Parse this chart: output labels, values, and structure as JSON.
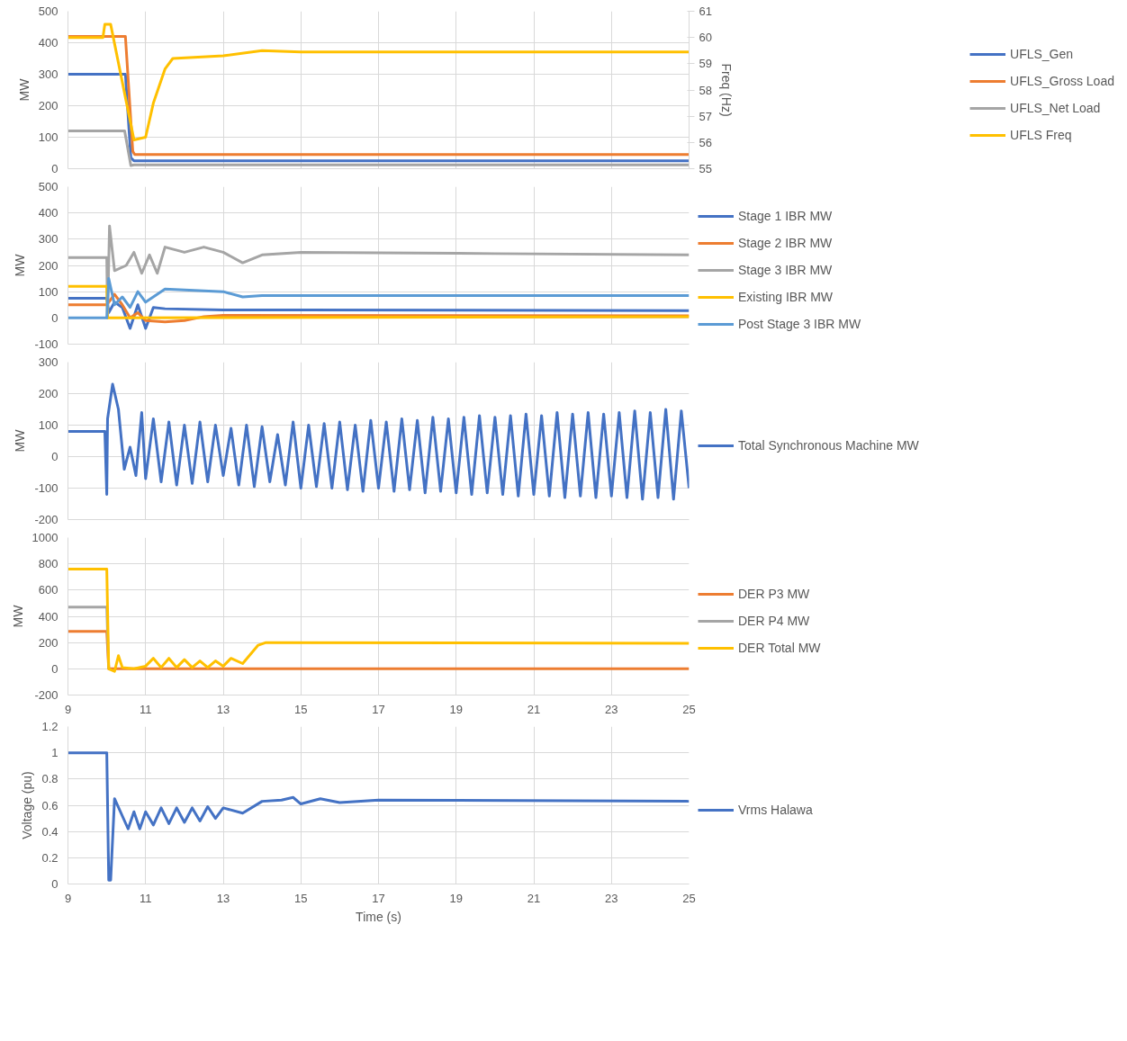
{
  "chart_data": [
    {
      "type": "line",
      "ylabel": "MW",
      "y2label": "Freq (Hz)",
      "xlim": [
        9,
        25
      ],
      "xticks": [
        9,
        11,
        13,
        15,
        17,
        19,
        21,
        23,
        25
      ],
      "ylim": [
        0,
        500
      ],
      "yticks": [
        0,
        100,
        200,
        300,
        400,
        500
      ],
      "y2lim": [
        55,
        61
      ],
      "y2ticks": [
        55,
        56,
        57,
        58,
        59,
        60,
        61
      ],
      "tick_labels": "y",
      "grid": true,
      "legend": "right",
      "series": [
        {
          "name": "UFLS_Gen",
          "color": "#4472c4",
          "x": [
            9,
            10.48,
            10.62,
            10.7,
            25
          ],
          "values": [
            300,
            300,
            35,
            25,
            25
          ]
        },
        {
          "name": "UFLS_Gross Load",
          "color": "#ed7d31",
          "x": [
            9,
            10.48,
            10.67,
            10.72,
            25
          ],
          "values": [
            420,
            420,
            55,
            45,
            45
          ]
        },
        {
          "name": "UFLS_Net Load",
          "color": "#a5a5a5",
          "x": [
            9,
            10.46,
            10.62,
            10.7,
            25
          ],
          "values": [
            120,
            120,
            10,
            12,
            12
          ]
        },
        {
          "name": "UFLS Freq",
          "color": "#ffc000",
          "axis": "y2",
          "x": [
            9,
            9.9,
            9.95,
            10.1,
            10.7,
            11.0,
            11.2,
            11.5,
            11.7,
            13,
            14,
            15,
            25
          ],
          "values": [
            60.0,
            60.0,
            60.5,
            60.5,
            56.1,
            56.2,
            57.5,
            58.8,
            59.2,
            59.3,
            59.5,
            59.45,
            59.45
          ]
        }
      ]
    },
    {
      "type": "line",
      "ylabel": "MW",
      "xlim": [
        9,
        25
      ],
      "xticks": [
        9,
        11,
        13,
        15,
        17,
        19,
        21,
        23,
        25
      ],
      "ylim": [
        -100,
        500
      ],
      "yticks": [
        -100,
        0,
        100,
        200,
        300,
        400,
        500
      ],
      "tick_labels": "y",
      "grid": true,
      "legend": "right",
      "series": [
        {
          "name": "Stage 1 IBR MW",
          "color": "#4472c4",
          "x": [
            9,
            10.0,
            10.05,
            10.2,
            10.4,
            10.6,
            10.8,
            11.0,
            11.2,
            11.5,
            13,
            15,
            25
          ],
          "values": [
            75,
            75,
            20,
            60,
            40,
            -40,
            50,
            -40,
            40,
            35,
            30,
            30,
            28
          ]
        },
        {
          "name": "Stage 2 IBR MW",
          "color": "#ed7d31",
          "x": [
            9,
            10.0,
            10.2,
            10.4,
            10.6,
            10.8,
            11.0,
            11.5,
            12,
            12.5,
            13,
            25
          ],
          "values": [
            50,
            50,
            90,
            50,
            0,
            20,
            -10,
            -15,
            -10,
            5,
            10,
            8
          ]
        },
        {
          "name": "Stage 3 IBR MW",
          "color": "#a5a5a5",
          "x": [
            9,
            10.0,
            10.02,
            10.07,
            10.2,
            10.5,
            10.7,
            10.9,
            11.1,
            11.3,
            11.5,
            12,
            12.5,
            13,
            13.5,
            14,
            15,
            20,
            25
          ],
          "values": [
            230,
            230,
            0,
            350,
            180,
            200,
            250,
            170,
            240,
            170,
            270,
            250,
            270,
            250,
            210,
            240,
            250,
            245,
            240
          ]
        },
        {
          "name": "Existing IBR MW",
          "color": "#ffc000",
          "x": [
            9,
            10.0,
            10.02,
            25
          ],
          "values": [
            120,
            120,
            0,
            5
          ]
        },
        {
          "name": "Post Stage 3 IBR MW",
          "color": "#5b9bd5",
          "x": [
            9,
            10.0,
            10.05,
            10.2,
            10.4,
            10.6,
            10.8,
            11.0,
            11.5,
            13,
            13.5,
            14,
            15,
            25
          ],
          "values": [
            0,
            0,
            150,
            50,
            80,
            40,
            100,
            60,
            110,
            100,
            80,
            85,
            85,
            85
          ]
        }
      ]
    },
    {
      "type": "line",
      "ylabel": "MW",
      "xlim": [
        9,
        25
      ],
      "xticks": [
        9,
        11,
        13,
        15,
        17,
        19,
        21,
        23,
        25
      ],
      "ylim": [
        -200,
        300
      ],
      "yticks": [
        -200,
        -100,
        0,
        100,
        200,
        300
      ],
      "tick_labels": "y",
      "grid": true,
      "legend": "right",
      "series": [
        {
          "name": "Total Synchronous Machine MW",
          "color": "#4472c4",
          "x": [
            9,
            9.95,
            10.0,
            10.02,
            10.15,
            10.3,
            10.45,
            10.6,
            10.75,
            10.9,
            11.0,
            11.2,
            11.4,
            11.6,
            11.8,
            12.0,
            12.2,
            12.4,
            12.6,
            12.8,
            13.0,
            13.2,
            13.4,
            13.6,
            13.8,
            14.0,
            14.2,
            14.4,
            14.6,
            14.8,
            15.0,
            15.2,
            15.4,
            15.6,
            15.8,
            16.0,
            16.2,
            16.4,
            16.6,
            16.8,
            17.0,
            17.2,
            17.4,
            17.6,
            17.8,
            18.0,
            18.2,
            18.4,
            18.6,
            18.8,
            19.0,
            19.2,
            19.4,
            19.6,
            19.8,
            20.0,
            20.2,
            20.4,
            20.6,
            20.8,
            21.0,
            21.2,
            21.4,
            21.6,
            21.8,
            22.0,
            22.2,
            22.4,
            22.6,
            22.8,
            23.0,
            23.2,
            23.4,
            23.6,
            23.8,
            24.0,
            24.2,
            24.4,
            24.6,
            24.8,
            25.0
          ],
          "values": [
            80,
            80,
            -120,
            120,
            230,
            150,
            -40,
            30,
            -60,
            140,
            -70,
            120,
            -80,
            110,
            -90,
            100,
            -85,
            110,
            -80,
            100,
            -60,
            90,
            -90,
            100,
            -95,
            95,
            -80,
            70,
            -90,
            110,
            -100,
            100,
            -95,
            105,
            -100,
            110,
            -105,
            100,
            -110,
            115,
            -100,
            110,
            -110,
            120,
            -105,
            115,
            -115,
            125,
            -110,
            120,
            -115,
            125,
            -120,
            130,
            -115,
            125,
            -120,
            130,
            -125,
            135,
            -120,
            130,
            -125,
            140,
            -130,
            135,
            -125,
            140,
            -130,
            135,
            -125,
            140,
            -130,
            145,
            -135,
            140,
            -130,
            150,
            -135,
            145,
            -100
          ]
        }
      ]
    },
    {
      "type": "line",
      "ylabel": "MW",
      "xlim": [
        9,
        25
      ],
      "xticks": [
        9,
        11,
        13,
        15,
        17,
        19,
        21,
        23,
        25
      ],
      "ylim": [
        -200,
        1000
      ],
      "yticks": [
        -200,
        0,
        200,
        400,
        600,
        800,
        1000
      ],
      "grid": true,
      "legend": "right",
      "series": [
        {
          "name": "DER P3 MW",
          "color": "#ed7d31",
          "x": [
            9,
            10.0,
            10.05,
            25
          ],
          "values": [
            285,
            285,
            0,
            0
          ]
        },
        {
          "name": "DER P4 MW",
          "color": "#a5a5a5",
          "x": [
            9,
            10.0,
            10.05
          ],
          "values": [
            470,
            470,
            0
          ]
        },
        {
          "name": "DER Total MW",
          "color": "#ffc000",
          "x": [
            9,
            10.0,
            10.05,
            10.2,
            10.3,
            10.4,
            10.7,
            11,
            11.2,
            11.4,
            11.6,
            11.8,
            12,
            12.2,
            12.4,
            12.6,
            12.8,
            13,
            13.2,
            13.5,
            13.9,
            14.1,
            25
          ],
          "values": [
            760,
            760,
            0,
            -20,
            100,
            10,
            0,
            20,
            80,
            10,
            80,
            10,
            70,
            10,
            60,
            10,
            60,
            20,
            80,
            40,
            180,
            200,
            195
          ]
        }
      ]
    },
    {
      "type": "line",
      "xlabel": "Time (s)",
      "ylabel": "Voltage (pu)",
      "xlim": [
        9,
        25
      ],
      "xticks": [
        9,
        11,
        13,
        15,
        17,
        19,
        21,
        23,
        25
      ],
      "ylim": [
        0,
        1.2
      ],
      "yticks": [
        0,
        0.2,
        0.4,
        0.6,
        0.8,
        1,
        1.2
      ],
      "grid": true,
      "legend": "right",
      "series": [
        {
          "name": "Vrms Halawa",
          "color": "#4472c4",
          "x": [
            9,
            10.0,
            10.05,
            10.1,
            10.2,
            10.55,
            10.7,
            10.85,
            11,
            11.2,
            11.4,
            11.6,
            11.8,
            12,
            12.2,
            12.4,
            12.6,
            12.8,
            13,
            13.5,
            14,
            14.5,
            14.8,
            15,
            15.5,
            16,
            17,
            25
          ],
          "values": [
            1.0,
            1.0,
            0.03,
            0.03,
            0.65,
            0.42,
            0.55,
            0.42,
            0.55,
            0.45,
            0.58,
            0.46,
            0.58,
            0.47,
            0.58,
            0.48,
            0.59,
            0.5,
            0.58,
            0.54,
            0.63,
            0.64,
            0.66,
            0.61,
            0.65,
            0.62,
            0.64,
            0.63
          ]
        }
      ]
    }
  ]
}
